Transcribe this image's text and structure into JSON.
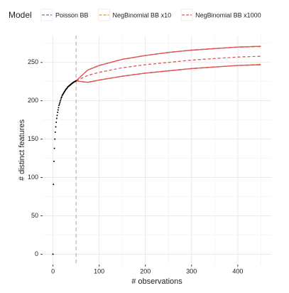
{
  "chart_data": {
    "type": "line",
    "xlabel": "# observations",
    "ylabel": "# distinct features",
    "legend_title": "Model",
    "legend_position": "top",
    "xlim": [
      -22.5,
      472.5
    ],
    "xticks": [
      0,
      100,
      200,
      300,
      400
    ],
    "x_minor_ticks": [
      50,
      150,
      250,
      350,
      450
    ],
    "ylim": [
      -13.5,
      285
    ],
    "yticks": [
      0,
      50,
      100,
      150,
      200,
      250
    ],
    "y_minor_ticks": [
      25,
      75,
      125,
      175,
      225,
      275
    ],
    "grid": true,
    "vline": 50,
    "observed": {
      "color": "#000000",
      "x": [
        0,
        1,
        2,
        3,
        4,
        5,
        6,
        7,
        8,
        9,
        10,
        11,
        12,
        13,
        14,
        15,
        16,
        17,
        18,
        19,
        20,
        21,
        22,
        23,
        24,
        25,
        26,
        27,
        28,
        29,
        30,
        31,
        32,
        33,
        34,
        35,
        36,
        37,
        38,
        39,
        40,
        41,
        42,
        43,
        44,
        45,
        46,
        47,
        48,
        49,
        50
      ],
      "values": [
        0,
        91,
        121,
        138,
        150,
        159,
        166,
        172,
        177,
        181,
        185,
        188,
        191,
        194,
        196,
        198,
        200,
        202,
        204,
        205,
        207,
        208,
        209,
        210,
        211,
        212,
        213,
        214,
        215,
        215.5,
        216,
        217,
        218,
        218.5,
        219,
        219.5,
        220,
        220.5,
        221,
        221.5,
        222,
        222.5,
        223,
        223.5,
        224,
        224.3,
        224.6,
        225,
        225.3,
        225.6,
        226
      ]
    },
    "x": [
      50,
      75,
      100,
      150,
      200,
      250,
      300,
      350,
      400,
      450
    ],
    "series": [
      {
        "name": "Poisson BB",
        "color": "#4a78b5",
        "values": [
          226,
          233,
          237,
          243,
          247,
          250,
          253,
          255,
          257,
          258
        ],
        "lower": [
          226,
          224,
          227,
          232,
          236,
          239,
          242,
          244,
          246,
          247
        ],
        "upper": [
          226,
          240,
          246,
          254,
          259,
          263,
          266,
          268,
          270,
          271
        ]
      },
      {
        "name": "NegBinomial BB x10",
        "color": "#f28e2b",
        "values": [
          226,
          233,
          237,
          243,
          247,
          250,
          253,
          255,
          257,
          258
        ],
        "lower": [
          226,
          224,
          227,
          232,
          236,
          239,
          242,
          244,
          246,
          247.5
        ],
        "upper": [
          226,
          240,
          246,
          254,
          259,
          263,
          266,
          268,
          270,
          270.5
        ]
      },
      {
        "name": "NegBinomial BB x1000",
        "color": "#e15759",
        "values": [
          226,
          233,
          237,
          243,
          247,
          250,
          253,
          255,
          257,
          258
        ],
        "lower": [
          226,
          224,
          227,
          232,
          236,
          239,
          242,
          244,
          246,
          247
        ],
        "upper": [
          226,
          240,
          246,
          254,
          259,
          263,
          266,
          268,
          270,
          271
        ]
      }
    ]
  }
}
